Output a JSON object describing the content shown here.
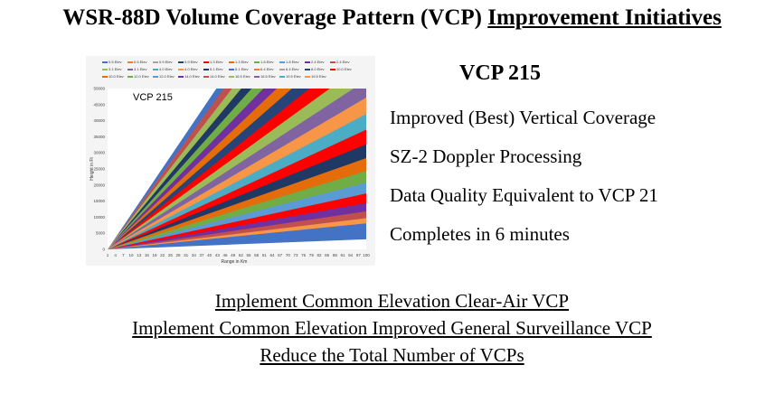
{
  "title": {
    "main": "WSR-88D Volume Coverage Pattern (VCP)",
    "underlined": "Improvement Initiatives"
  },
  "chart": {
    "label": "VCP 215",
    "xlabel": "Range in Km",
    "ylabel": "Height in Ft",
    "yticks": [
      "0",
      "5000",
      "10000",
      "15000",
      "20000",
      "25000",
      "30000",
      "35000",
      "40000",
      "45000",
      "50000"
    ],
    "xticks": [
      "1",
      "4",
      "7",
      "10",
      "13",
      "16",
      "19",
      "22",
      "25",
      "28",
      "31",
      "34",
      "37",
      "40",
      "43",
      "46",
      "49",
      "52",
      "55",
      "58",
      "61",
      "64",
      "67",
      "70",
      "73",
      "76",
      "79",
      "82",
      "85",
      "88",
      "91",
      "94",
      "97",
      "100"
    ],
    "legend": [
      "0.5 Elev",
      "0.5 Elev",
      "0.9 Elev",
      "0.9 Elev",
      "1.3 Elev",
      "1.3 Elev",
      "1.8 Elev",
      "1.8 Elev",
      "2.4 Elev",
      "2.4 Elev",
      "3.1 Elev",
      "3.1 Elev",
      "4.0 Elev",
      "4.0 Elev",
      "5.1 Elev",
      "5.1 Elev",
      "6.4 Elev",
      "6.4 Elev",
      "8.0 Elev",
      "10.0 Elev",
      "10.0 Elev",
      "12.0 Elev",
      "12.0 Elev",
      "14.0 Elev",
      "14.0 Elev",
      "16.5 Elev",
      "16.5 Elev",
      "19.5 Elev",
      "19.5 Elev"
    ],
    "colors": [
      "#4472c4",
      "#ed7d31",
      "#a5a5a5",
      "#264478",
      "#ff0000",
      "#e46c0a",
      "#70ad47",
      "#5b9bd5",
      "#7030a0",
      "#c0504d",
      "#9bbb59",
      "#8064a2",
      "#4bacc6",
      "#f79646",
      "#1f3864"
    ]
  },
  "right": {
    "heading": "VCP 215",
    "items": [
      "Improved (Best) Vertical Coverage",
      "SZ-2 Doppler Processing",
      "Data Quality Equivalent to VCP 21",
      "Completes in 6 minutes"
    ]
  },
  "bottom": {
    "lines": [
      "Implement Common Elevation Clear-Air VCP",
      "Implement Common Elevation Improved General Surveillance VCP",
      "Reduce the Total Number of VCPs"
    ]
  }
}
